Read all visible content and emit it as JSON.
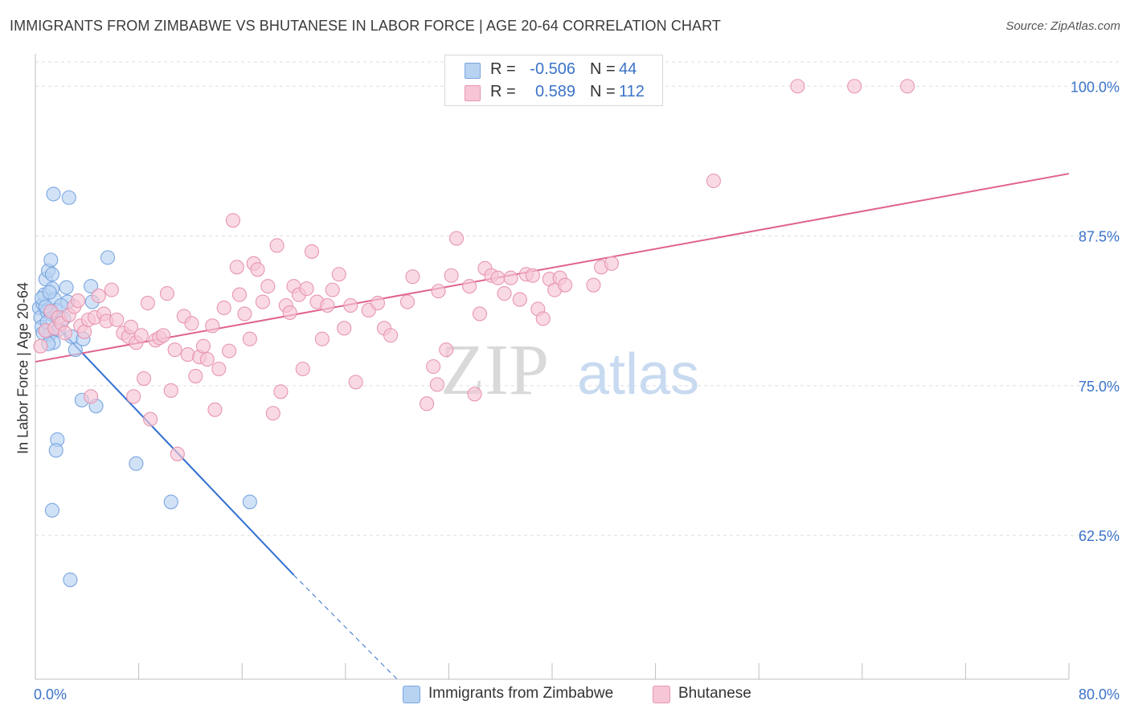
{
  "header": {
    "title": "IMMIGRANTS FROM ZIMBABWE VS BHUTANESE IN LABOR FORCE | AGE 20-64 CORRELATION CHART",
    "source": "Source: ZipAtlas.com"
  },
  "legend": {
    "rows": [
      {
        "r_label": "R =",
        "r_value": "-0.506",
        "n_label": "N =",
        "n_value": "44"
      },
      {
        "r_label": "R =",
        "r_value": "0.589",
        "n_label": "N =",
        "n_value": "112"
      }
    ]
  },
  "watermark": {
    "zip": "ZIP",
    "atlas": "atlas"
  },
  "chart_data": {
    "type": "scatter",
    "title": "IMMIGRANTS FROM ZIMBABWE VS BHUTANESE IN LABOR FORCE | AGE 20-64 CORRELATION CHART",
    "xlabel": "",
    "ylabel": "In Labor Force | Age 20-64",
    "xlim": [
      0,
      80
    ],
    "ylim": [
      50.5,
      102.5
    ],
    "x_tick_labels": [
      {
        "value": 0,
        "label": "0.0%"
      },
      {
        "value": 80,
        "label": "80.0%"
      }
    ],
    "y_tick_labels": [
      {
        "value": 100,
        "label": "100.0%"
      },
      {
        "value": 87.5,
        "label": "87.5%"
      },
      {
        "value": 75,
        "label": "75.0%"
      },
      {
        "value": 62.5,
        "label": "62.5%"
      }
    ],
    "grid": true,
    "legend_position": "top-center",
    "series": [
      {
        "name": "Immigrants from Zimbabwe",
        "color": "#7aa6e0",
        "fill": "#b8d2f2",
        "line_color": "#2f6fd0",
        "trend": {
          "x": [
            0.3,
            20.0
          ],
          "y": [
            81.5,
            59.2
          ],
          "dashed_to": [
            28.0,
            50.5
          ]
        },
        "points": [
          [
            0.3,
            81.5
          ],
          [
            0.4,
            80.7
          ],
          [
            0.5,
            79.9
          ],
          [
            0.6,
            81.8
          ],
          [
            0.7,
            82.6
          ],
          [
            0.8,
            83.9
          ],
          [
            0.9,
            81.2
          ],
          [
            1.0,
            84.6
          ],
          [
            1.1,
            79.3
          ],
          [
            1.2,
            81.0
          ],
          [
            1.3,
            83.1
          ],
          [
            1.4,
            78.6
          ],
          [
            1.2,
            85.5
          ],
          [
            1.3,
            84.3
          ],
          [
            1.5,
            82.2
          ],
          [
            1.6,
            81.3
          ],
          [
            1.8,
            79.7
          ],
          [
            1.4,
            91.0
          ],
          [
            2.6,
            90.7
          ],
          [
            2.4,
            83.2
          ],
          [
            2.5,
            82.0
          ],
          [
            2.2,
            80.6
          ],
          [
            2.8,
            79.1
          ],
          [
            3.1,
            78.0
          ],
          [
            3.7,
            78.9
          ],
          [
            4.3,
            83.3
          ],
          [
            4.4,
            82.0
          ],
          [
            5.6,
            85.7
          ],
          [
            3.6,
            73.8
          ],
          [
            4.7,
            73.3
          ],
          [
            1.7,
            70.5
          ],
          [
            1.6,
            69.6
          ],
          [
            7.8,
            68.5
          ],
          [
            10.5,
            65.3
          ],
          [
            16.6,
            65.3
          ],
          [
            1.3,
            64.6
          ],
          [
            2.7,
            58.8
          ],
          [
            0.5,
            82.3
          ],
          [
            0.6,
            79.4
          ],
          [
            0.9,
            80.3
          ],
          [
            1.0,
            78.5
          ],
          [
            1.1,
            82.8
          ],
          [
            0.8,
            81.6
          ],
          [
            2.0,
            81.7
          ]
        ]
      },
      {
        "name": "Bhutanese",
        "color": "#e896b0",
        "fill": "#f6c6d6",
        "line_color": "#e0628e",
        "trend": {
          "x": [
            0.0,
            80.0
          ],
          "y": [
            77.0,
            92.7
          ]
        },
        "points": [
          [
            0.4,
            78.3
          ],
          [
            0.8,
            79.6
          ],
          [
            1.2,
            81.2
          ],
          [
            1.5,
            79.8
          ],
          [
            1.8,
            80.7
          ],
          [
            2.0,
            80.2
          ],
          [
            2.3,
            79.4
          ],
          [
            2.6,
            80.9
          ],
          [
            3.0,
            81.6
          ],
          [
            3.3,
            82.1
          ],
          [
            3.5,
            80.0
          ],
          [
            3.8,
            79.5
          ],
          [
            4.1,
            80.5
          ],
          [
            4.3,
            74.1
          ],
          [
            4.6,
            80.7
          ],
          [
            4.9,
            82.5
          ],
          [
            5.3,
            81.0
          ],
          [
            5.5,
            80.4
          ],
          [
            5.9,
            83.0
          ],
          [
            6.3,
            80.5
          ],
          [
            6.8,
            79.4
          ],
          [
            7.2,
            79.1
          ],
          [
            7.4,
            79.9
          ],
          [
            7.6,
            74.1
          ],
          [
            7.8,
            78.6
          ],
          [
            8.2,
            79.2
          ],
          [
            8.4,
            75.6
          ],
          [
            8.7,
            81.9
          ],
          [
            8.9,
            72.2
          ],
          [
            9.3,
            78.8
          ],
          [
            9.6,
            79.0
          ],
          [
            9.9,
            79.2
          ],
          [
            10.2,
            82.7
          ],
          [
            10.5,
            74.6
          ],
          [
            10.8,
            78.0
          ],
          [
            11.0,
            69.3
          ],
          [
            11.5,
            80.8
          ],
          [
            11.8,
            77.6
          ],
          [
            12.1,
            80.2
          ],
          [
            12.4,
            75.8
          ],
          [
            12.7,
            77.4
          ],
          [
            13.0,
            78.3
          ],
          [
            13.3,
            77.2
          ],
          [
            13.7,
            80.0
          ],
          [
            13.9,
            73.0
          ],
          [
            14.2,
            76.4
          ],
          [
            14.6,
            81.5
          ],
          [
            15.0,
            77.9
          ],
          [
            15.3,
            88.8
          ],
          [
            15.6,
            84.9
          ],
          [
            15.8,
            82.6
          ],
          [
            16.2,
            81.0
          ],
          [
            16.6,
            78.9
          ],
          [
            16.9,
            85.2
          ],
          [
            17.2,
            84.7
          ],
          [
            17.6,
            82.0
          ],
          [
            18.0,
            83.3
          ],
          [
            18.4,
            72.7
          ],
          [
            18.7,
            86.7
          ],
          [
            19.0,
            74.5
          ],
          [
            19.4,
            81.7
          ],
          [
            19.7,
            81.1
          ],
          [
            20.0,
            83.3
          ],
          [
            20.4,
            82.6
          ],
          [
            20.7,
            76.4
          ],
          [
            21.0,
            83.1
          ],
          [
            21.4,
            86.2
          ],
          [
            21.8,
            82.0
          ],
          [
            22.2,
            78.9
          ],
          [
            22.6,
            81.7
          ],
          [
            23.0,
            83.0
          ],
          [
            23.5,
            84.3
          ],
          [
            23.9,
            79.8
          ],
          [
            24.4,
            81.7
          ],
          [
            24.8,
            75.3
          ],
          [
            25.8,
            81.3
          ],
          [
            26.5,
            81.9
          ],
          [
            27.0,
            79.8
          ],
          [
            27.5,
            79.2
          ],
          [
            28.8,
            82.0
          ],
          [
            29.2,
            84.1
          ],
          [
            30.3,
            73.5
          ],
          [
            30.8,
            76.6
          ],
          [
            31.2,
            82.9
          ],
          [
            31.1,
            75.1
          ],
          [
            31.8,
            78.0
          ],
          [
            32.2,
            84.2
          ],
          [
            32.6,
            87.3
          ],
          [
            33.6,
            83.3
          ],
          [
            34.0,
            74.3
          ],
          [
            34.4,
            81.0
          ],
          [
            34.8,
            84.8
          ],
          [
            35.3,
            84.2
          ],
          [
            35.8,
            84.0
          ],
          [
            36.3,
            82.7
          ],
          [
            36.8,
            84.0
          ],
          [
            37.5,
            82.2
          ],
          [
            38.0,
            84.3
          ],
          [
            38.5,
            84.2
          ],
          [
            38.9,
            81.4
          ],
          [
            39.3,
            80.6
          ],
          [
            39.8,
            83.9
          ],
          [
            40.2,
            83.0
          ],
          [
            40.6,
            84.0
          ],
          [
            41.0,
            83.4
          ],
          [
            43.2,
            83.4
          ],
          [
            43.8,
            84.9
          ],
          [
            44.6,
            85.2
          ],
          [
            52.5,
            92.1
          ],
          [
            59.0,
            100.0
          ],
          [
            63.4,
            100.0
          ],
          [
            67.5,
            100.0
          ]
        ]
      }
    ]
  }
}
